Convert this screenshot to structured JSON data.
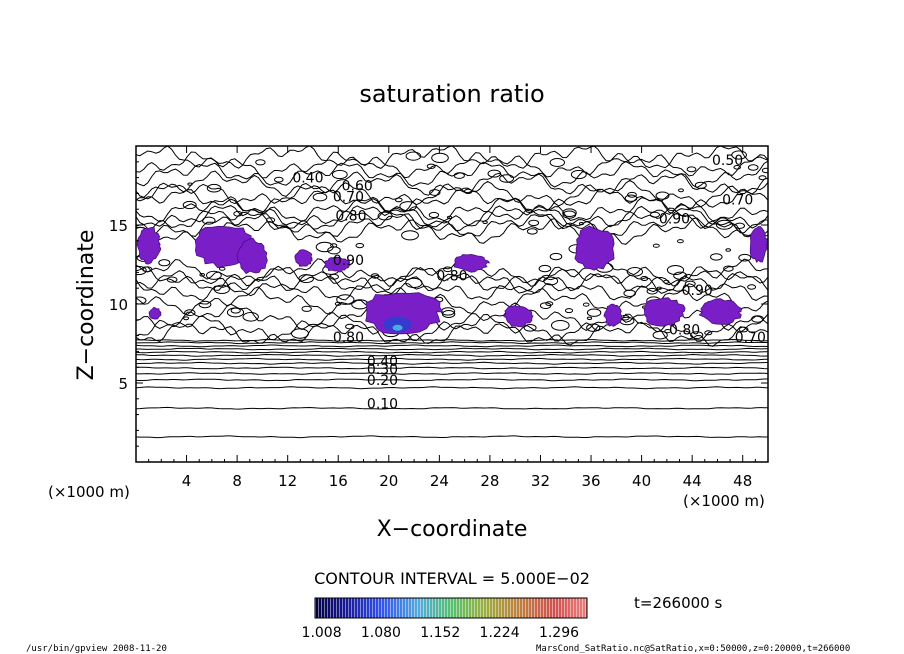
{
  "chart_data": {
    "type": "heatmap",
    "title": "saturation ratio",
    "xlabel": "X−coordinate",
    "ylabel": "Z−coordinate",
    "x_unit_left": "(×1000 m)",
    "x_unit_right": "(×1000 m)",
    "xlim": [
      0,
      50
    ],
    "ylim": [
      0,
      20
    ],
    "x_ticks": [
      "4",
      "8",
      "12",
      "16",
      "20",
      "24",
      "28",
      "32",
      "36",
      "40",
      "44",
      "48"
    ],
    "y_ticks": [
      "5",
      "10",
      "15"
    ],
    "contour_interval": "CONTOUR INTERVAL = 5.000E−02",
    "time_label": "t=266000 s",
    "colorbar_ticks": [
      "1.008",
      "1.080",
      "1.152",
      "1.224",
      "1.296"
    ],
    "colorbar_range": [
      1.0,
      1.33
    ],
    "contour_labels": [
      {
        "text": "0.10",
        "x": 19.5,
        "z": 3.7
      },
      {
        "text": "0.20",
        "x": 19.5,
        "z": 5.2
      },
      {
        "text": "0.30",
        "x": 19.5,
        "z": 5.9
      },
      {
        "text": "0.40",
        "x": 19.5,
        "z": 6.4
      },
      {
        "text": "0.50",
        "x": 46.8,
        "z": 19.1
      },
      {
        "text": "0.40",
        "x": 13.6,
        "z": 18.0
      },
      {
        "text": "0.60",
        "x": 17.5,
        "z": 17.5
      },
      {
        "text": "0.70",
        "x": 16.8,
        "z": 16.8
      },
      {
        "text": "0.70",
        "x": 47.6,
        "z": 16.6
      },
      {
        "text": "0.80",
        "x": 17.0,
        "z": 15.6
      },
      {
        "text": "0.90",
        "x": 42.6,
        "z": 15.4
      },
      {
        "text": "0.90",
        "x": 16.8,
        "z": 12.8
      },
      {
        "text": "0.80",
        "x": 25.0,
        "z": 11.8
      },
      {
        "text": "0.90",
        "x": 44.4,
        "z": 10.9
      },
      {
        "text": "0.80",
        "x": 16.8,
        "z": 7.9
      },
      {
        "text": "0.80",
        "x": 43.4,
        "z": 8.4
      },
      {
        "text": "0.70",
        "x": 48.6,
        "z": 7.9
      }
    ],
    "supersaturated_regions": [
      {
        "x": [
          0.0,
          2.0
        ],
        "z": [
          12.5,
          15.0
        ]
      },
      {
        "x": [
          4.5,
          9.5
        ],
        "z": [
          12.2,
          15.2
        ]
      },
      {
        "x": [
          8.0,
          10.5
        ],
        "z": [
          11.8,
          14.2
        ]
      },
      {
        "x": [
          12.5,
          14.0
        ],
        "z": [
          12.3,
          13.5
        ]
      },
      {
        "x": [
          14.8,
          17.0
        ],
        "z": [
          12.0,
          13.0
        ]
      },
      {
        "x": [
          17.5,
          24.5
        ],
        "z": [
          8.0,
          11.0
        ]
      },
      {
        "x": [
          25.0,
          28.0
        ],
        "z": [
          12.0,
          13.2
        ]
      },
      {
        "x": [
          34.5,
          38.0
        ],
        "z": [
          12.0,
          15.0
        ]
      },
      {
        "x": [
          29.0,
          31.5
        ],
        "z": [
          8.5,
          10.0
        ]
      },
      {
        "x": [
          37.0,
          38.5
        ],
        "z": [
          8.5,
          10.0
        ]
      },
      {
        "x": [
          40.0,
          43.5
        ],
        "z": [
          8.5,
          10.5
        ]
      },
      {
        "x": [
          44.5,
          48.0
        ],
        "z": [
          8.6,
          10.4
        ]
      },
      {
        "x": [
          48.5,
          50.0
        ],
        "z": [
          12.5,
          15.0
        ]
      },
      {
        "x": [
          1.0,
          2.0
        ],
        "z": [
          9.0,
          9.8
        ]
      }
    ],
    "grid": false,
    "legend": "bottom"
  },
  "footer": {
    "left": "/usr/bin/gpview   2008-11-20",
    "right": "MarsCond_SatRatio.nc@SatRatio,x=0:50000,z=0:20000,t=266000"
  }
}
